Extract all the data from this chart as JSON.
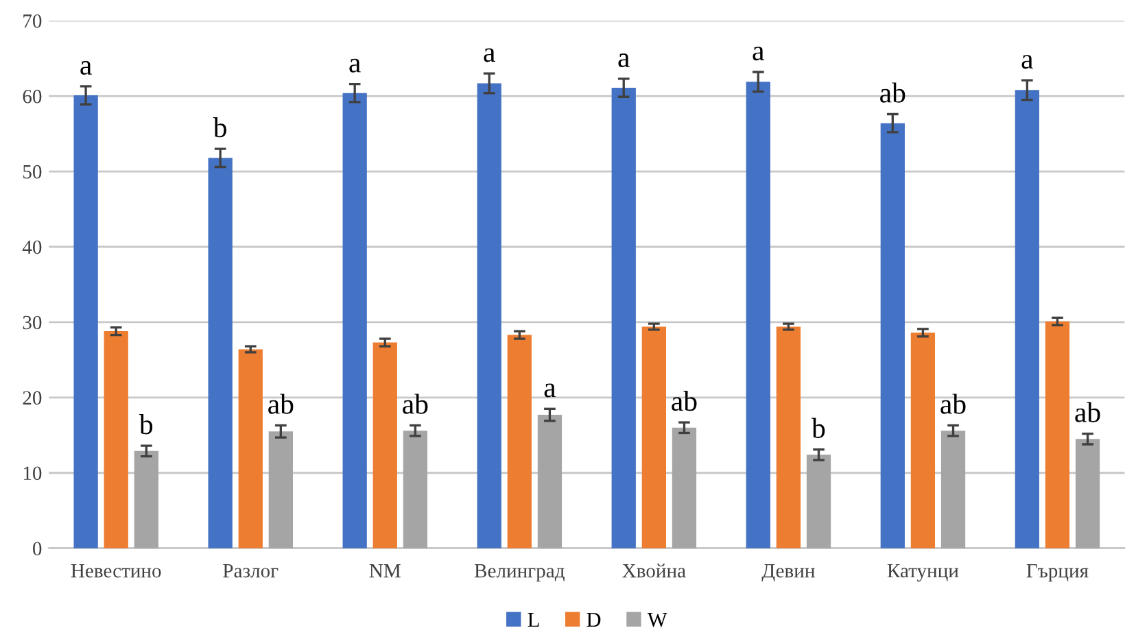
{
  "chart_data": {
    "type": "bar",
    "categories": [
      "Невестино",
      "Разлог",
      "NM",
      "Велинград",
      "Хвойна",
      "Девин",
      "Катунци",
      "Гърция"
    ],
    "series": [
      {
        "name": "L",
        "color": "#4472c4",
        "values": [
          60.1,
          51.8,
          60.4,
          61.7,
          61.1,
          61.9,
          56.4,
          60.8
        ],
        "errors": [
          1.2,
          1.2,
          1.2,
          1.3,
          1.2,
          1.3,
          1.2,
          1.3
        ],
        "value_labels": [
          "a",
          "b",
          "a",
          "a",
          "a",
          "a",
          "ab",
          "a"
        ]
      },
      {
        "name": "D",
        "color": "#ed7d31",
        "values": [
          28.8,
          26.4,
          27.3,
          28.3,
          29.4,
          29.4,
          28.6,
          30.1
        ],
        "errors": [
          0.5,
          0.4,
          0.5,
          0.5,
          0.4,
          0.4,
          0.5,
          0.5
        ]
      },
      {
        "name": "W",
        "color": "#a5a5a5",
        "values": [
          12.9,
          15.5,
          15.6,
          17.7,
          16.0,
          12.4,
          15.6,
          14.5
        ],
        "errors": [
          0.7,
          0.8,
          0.7,
          0.8,
          0.7,
          0.7,
          0.7,
          0.7
        ],
        "value_labels": [
          "b",
          "ab",
          "ab",
          "a",
          "ab",
          "b",
          "ab",
          "ab"
        ]
      }
    ],
    "ylim": [
      0,
      70
    ],
    "yticks": [
      0,
      10,
      20,
      30,
      40,
      50,
      60,
      70
    ],
    "grid": "y",
    "legend": "bottom"
  }
}
